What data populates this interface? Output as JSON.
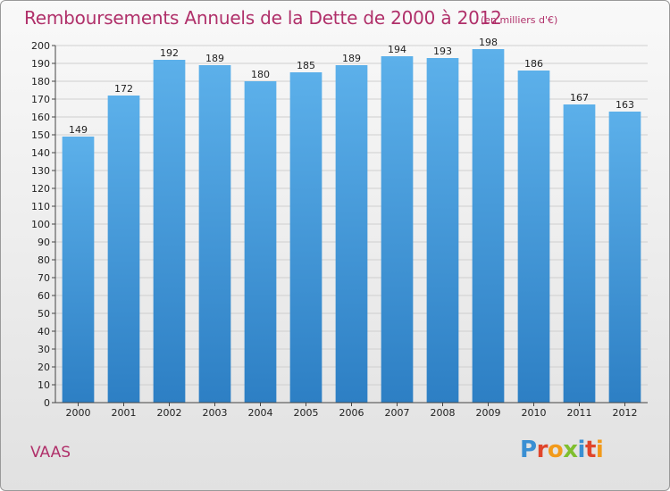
{
  "chart_data": {
    "type": "bar",
    "title": "Remboursements Annuels de la Dette de 2000 à 2012",
    "subtitle": "(en milliers d'€)",
    "categories": [
      "2000",
      "2001",
      "2002",
      "2003",
      "2004",
      "2005",
      "2006",
      "2007",
      "2008",
      "2009",
      "2010",
      "2011",
      "2012"
    ],
    "values": [
      149,
      172,
      192,
      189,
      180,
      185,
      189,
      194,
      193,
      198,
      186,
      167,
      163
    ],
    "ylim": [
      0,
      200
    ],
    "ytick_step": 10,
    "grid": true,
    "bar_color": "#3a93d9",
    "title_color": "#b0306a"
  },
  "footer": {
    "commune": "VAAS",
    "logo": "Proxiti"
  }
}
